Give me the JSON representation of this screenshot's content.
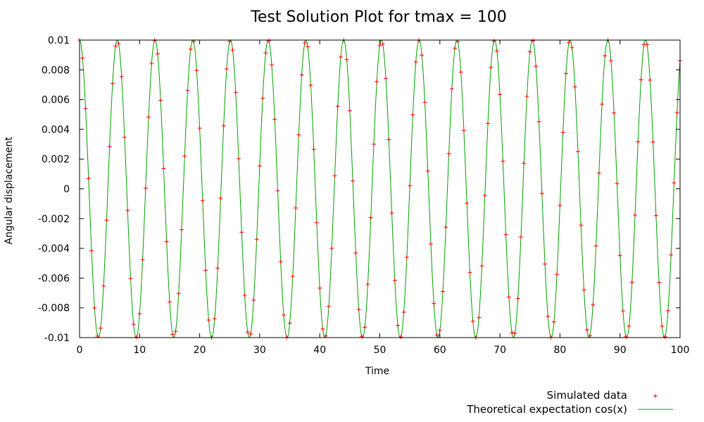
{
  "chart_data": {
    "type": "line",
    "title": "Test Solution Plot for tmax = 100",
    "xlabel": "Time",
    "ylabel": "Angular displacement",
    "xlim": [
      0,
      100
    ],
    "ylim": [
      -0.01,
      0.01
    ],
    "x_ticks": [
      0,
      10,
      20,
      30,
      40,
      50,
      60,
      70,
      80,
      90,
      100
    ],
    "y_ticks": [
      "0.01",
      "0.008",
      "0.006",
      "0.004",
      "0.002",
      "0",
      "-0.002",
      "-0.004",
      "-0.006",
      "-0.008",
      "-0.01"
    ],
    "y_tick_values": [
      0.01,
      0.008,
      0.006,
      0.004,
      0.002,
      0,
      -0.002,
      -0.004,
      -0.006,
      -0.008,
      -0.01
    ],
    "grid": false,
    "legend_position": "bottom-right, below plot",
    "series": [
      {
        "name": "Simulated data",
        "style": "points",
        "marker": "+",
        "color": "#ff0000",
        "x": [
          0,
          0.5,
          1,
          1.5,
          2,
          2.5,
          3,
          3.5,
          4,
          4.5,
          5,
          5.5,
          6,
          6.5,
          7,
          7.5,
          8,
          8.5,
          9,
          9.5,
          10,
          10.5,
          11,
          11.5,
          12,
          12.5,
          13,
          13.5,
          14,
          14.5,
          15,
          15.5,
          16,
          16.5,
          17,
          17.5,
          18,
          18.5,
          19,
          19.5,
          20,
          20.5,
          21,
          21.5,
          22,
          22.5,
          23,
          23.5,
          24,
          24.5,
          25,
          25.5,
          26,
          26.5,
          27,
          27.5,
          28,
          28.5,
          29,
          29.5,
          30,
          30.5,
          31,
          31.5,
          32,
          32.5,
          33,
          33.5,
          34,
          34.5,
          35,
          35.5,
          36,
          36.5,
          37,
          37.5,
          38,
          38.5,
          39,
          39.5,
          40,
          40.5,
          41,
          41.5,
          42,
          42.5,
          43,
          43.5,
          44,
          44.5,
          45,
          45.5,
          46,
          46.5,
          47,
          47.5,
          48,
          48.5,
          49,
          49.5,
          50,
          50.5,
          51,
          51.5,
          52,
          52.5,
          53,
          53.5,
          54,
          54.5,
          55,
          55.5,
          56,
          56.5,
          57,
          57.5,
          58,
          58.5,
          59,
          59.5,
          60,
          60.5,
          61,
          61.5,
          62,
          62.5,
          63,
          63.5,
          64,
          64.5,
          65,
          65.5,
          66,
          66.5,
          67,
          67.5,
          68,
          68.5,
          69,
          69.5,
          70,
          70.5,
          71,
          71.5,
          72,
          72.5,
          73,
          73.5,
          74,
          74.5,
          75,
          75.5,
          76,
          76.5,
          77,
          77.5,
          78,
          78.5,
          79,
          79.5,
          80,
          80.5,
          81,
          81.5,
          82,
          82.5,
          83,
          83.5,
          84,
          84.5,
          85,
          85.5,
          86,
          86.5,
          87,
          87.5,
          88,
          88.5,
          89,
          89.5,
          90,
          90.5,
          91,
          91.5,
          92,
          92.5,
          93,
          93.5,
          94,
          94.5,
          95,
          95.5,
          96,
          96.5,
          97,
          97.5,
          98,
          98.5,
          99,
          99.5,
          100
        ],
        "y": [
          0.01,
          0.00878,
          0.0054,
          0.00071,
          -0.00416,
          -0.00801,
          -0.0099,
          -0.00936,
          -0.00654,
          -0.00211,
          0.00284,
          0.00709,
          0.0096,
          0.00977,
          0.00754,
          0.00347,
          -0.00146,
          -0.00602,
          -0.00911,
          -0.00997,
          -0.00839,
          -0.00476,
          4e-05,
          0.00483,
          0.00844,
          0.00998,
          0.00907,
          0.00595,
          0.00137,
          -0.00355,
          -0.0076,
          -0.00979,
          -0.00958,
          -0.00703,
          -0.00275,
          0.00219,
          0.00661,
          0.00939,
          0.0099,
          0.00796,
          0.00408,
          -0.00079,
          -0.00548,
          -0.00882,
          -0.01,
          -0.00873,
          -0.00533,
          -0.00063,
          0.00424,
          0.00806,
          0.00991,
          0.00933,
          0.00647,
          0.00202,
          -0.00292,
          -0.00715,
          -0.00962,
          -0.00975,
          -0.00748,
          -0.00339,
          0.00154,
          0.00608,
          0.00914,
          0.00996,
          0.00834,
          0.00468,
          -0.00013,
          -0.0049,
          -0.00848,
          -0.00999,
          -0.00903,
          -0.00588,
          -0.00129,
          0.00363,
          0.00766,
          0.00981,
          0.00955,
          0.00697,
          0.00266,
          -0.00228,
          -0.00667,
          -0.00942,
          -0.00989,
          -0.0079,
          -0.004,
          0.00088,
          0.00555,
          0.00886,
          0.01,
          0.00869,
          0.00525,
          0.00054,
          -0.00432,
          -0.00811,
          -0.00992,
          -0.0093,
          -0.00641,
          -0.00194,
          0.003,
          0.00721,
          0.00965,
          0.00973,
          0.00742,
          0.00331,
          -0.00163,
          -0.00615,
          -0.00918,
          -0.00996,
          -0.00829,
          -0.0046,
          0.00022,
          0.00498,
          0.00853,
          0.00999,
          0.00899,
          0.00581,
          0.0012,
          -0.00371,
          -0.00771,
          -0.00983,
          -0.00952,
          -0.00691,
          -0.00258,
          0.00236,
          0.00673,
          0.00945,
          0.00988,
          0.00785,
          0.00392,
          -0.00097,
          -0.00562,
          -0.0089,
          -0.01,
          -0.00865,
          -0.00518,
          -0.00045,
          0.0044,
          0.00816,
          0.00993,
          0.00927,
          0.00634,
          0.00186,
          -0.00308,
          -0.00727,
          -0.00967,
          -0.00971,
          -0.00737,
          -0.00323,
          0.00172,
          0.00622,
          0.00921,
          0.00995,
          0.00824,
          0.00452,
          -0.00031,
          -0.00505,
          -0.00857,
          -0.00999,
          -0.00894,
          -0.00575,
          -0.00111,
          0.00379,
          0.00776,
          0.00984,
          0.00949,
          0.00685,
          0.0025,
          -0.00244,
          -0.00679,
          -0.00948,
          -0.00987,
          -0.00779,
          -0.00384,
          0.00106,
          0.00569,
          0.00894,
          0.01,
          0.0086,
          0.0051,
          0.00036,
          -0.00448,
          -0.00821,
          -0.00994,
          -0.00924,
          -0.00628,
          -0.00177,
          0.00316,
          0.00733,
          0.0097,
          0.00969,
          0.00731,
          0.00315,
          -0.0018,
          -0.00629,
          -0.00924,
          -0.00995,
          -0.00819,
          -0.00444,
          0.0004,
          0.00512,
          0.00862
        ]
      },
      {
        "name": "Theoretical expectation cos(x)",
        "style": "line",
        "color": "#00a000",
        "function": "0.01*cos(x)"
      }
    ]
  }
}
